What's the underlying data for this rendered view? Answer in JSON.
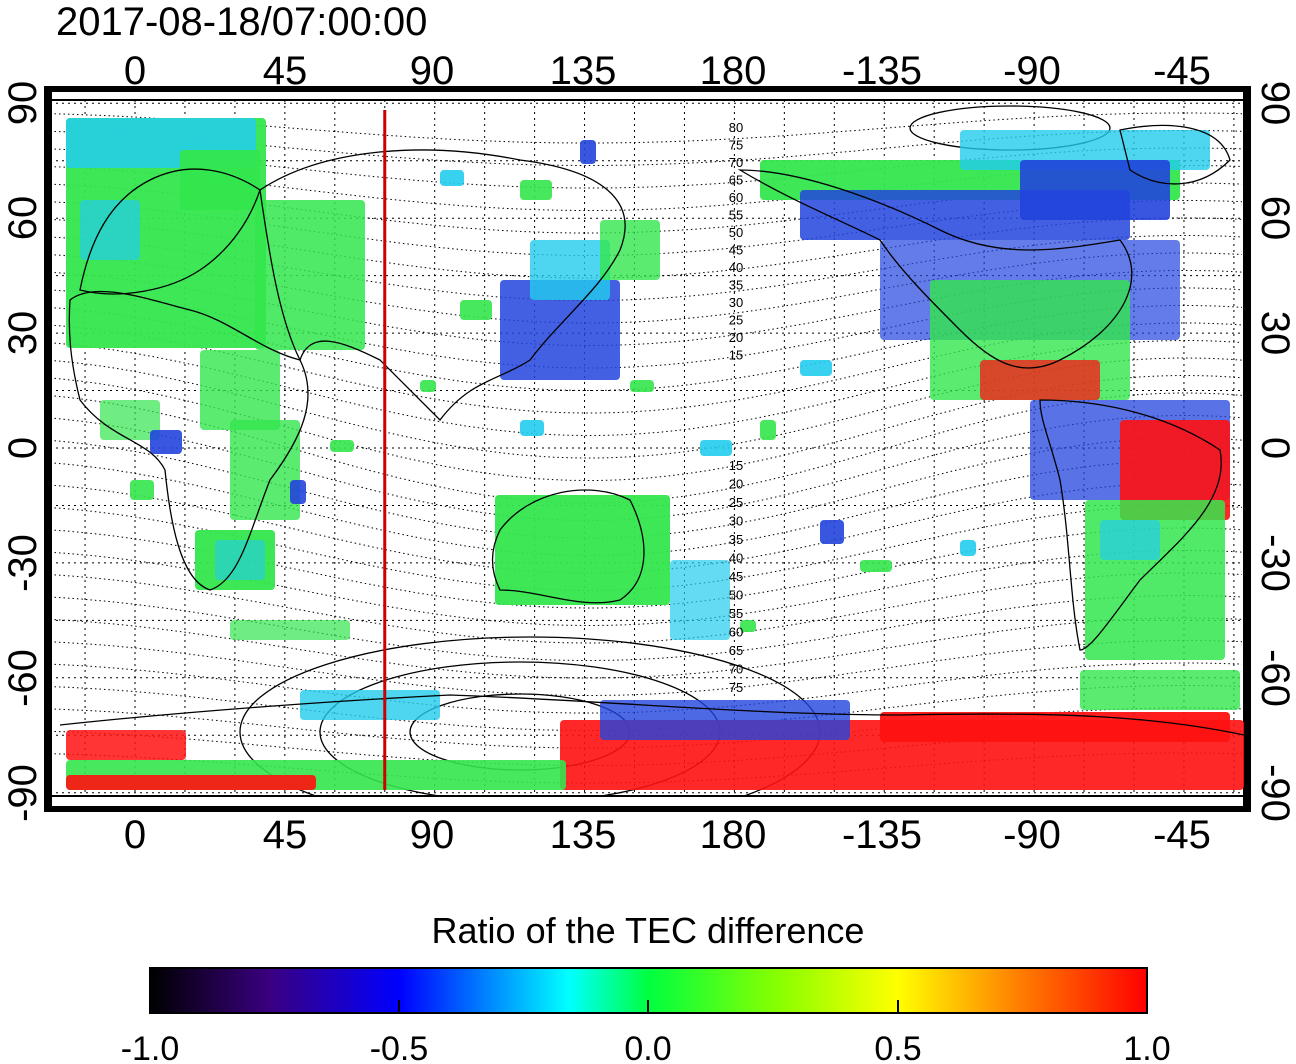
{
  "title": "2017-08-18/07:00:00",
  "x_ticks_top": [
    "0",
    "45",
    "90",
    "135",
    "180",
    "-135",
    "-90",
    "-45"
  ],
  "x_ticks_bottom": [
    "0",
    "45",
    "90",
    "135",
    "180",
    "-135",
    "-90",
    "-45"
  ],
  "y_ticks_left": [
    "90",
    "60",
    "30",
    "0",
    "-30",
    "-60",
    "-90"
  ],
  "y_ticks_right": [
    "90",
    "60",
    "30",
    "0",
    "-30",
    "-60",
    "-90"
  ],
  "contour_labels_north": [
    "80",
    "75",
    "70",
    "65",
    "60",
    "55",
    "50",
    "45",
    "40",
    "35",
    "30",
    "25",
    "20",
    "15"
  ],
  "contour_labels_south": [
    "15",
    "20",
    "25",
    "30",
    "35",
    "40",
    "45",
    "50",
    "55",
    "60",
    "65",
    "70",
    "75"
  ],
  "meridian_line_longitude": 75,
  "colorbar": {
    "title": "Ratio of the TEC difference",
    "tick_labels": [
      "-1.0",
      "-0.5",
      "0.0",
      "0.5",
      "1.0"
    ],
    "colors": [
      "#000000",
      "#3a0080",
      "#0000ff",
      "#00ffff",
      "#00ff40",
      "#ffff00",
      "#ff8000",
      "#ff0000"
    ]
  },
  "map_colors": {
    "green": "#33e64d",
    "cyan": "#22ccee",
    "blue": "#2244dd",
    "red": "#ff1111",
    "yellow": "#ffee00",
    "line": "#cc0000"
  }
}
